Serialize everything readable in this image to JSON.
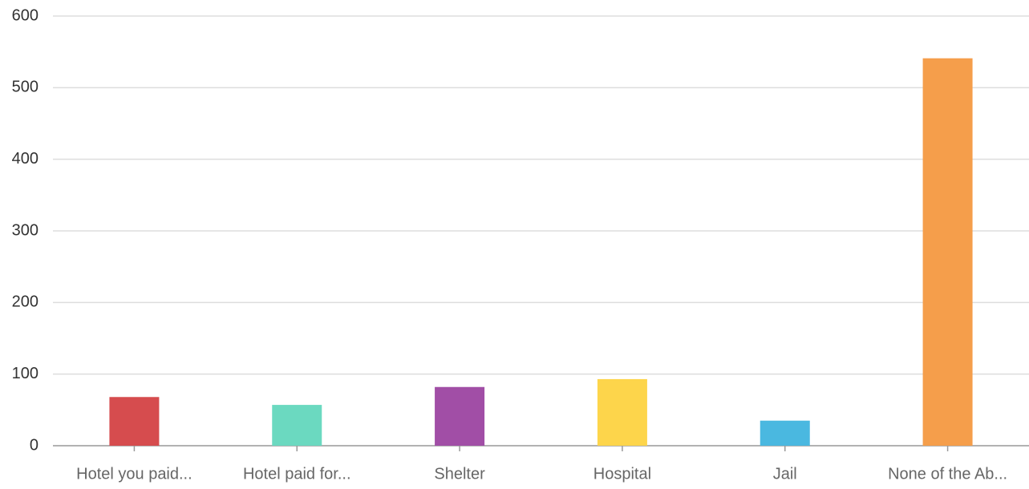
{
  "chart_data": {
    "type": "bar",
    "categories": [
      "Hotel you paid...",
      "Hotel paid for...",
      "Shelter",
      "Hospital",
      "Jail",
      "None of the Ab..."
    ],
    "values": [
      68,
      57,
      82,
      93,
      35,
      541
    ],
    "colors": [
      "#d64c4e",
      "#6bd9c0",
      "#a14ea6",
      "#fdd54b",
      "#4ab8e0",
      "#f59e4b"
    ],
    "ylim": [
      0,
      600
    ],
    "yticks": [
      0,
      100,
      200,
      300,
      400,
      500,
      600
    ],
    "grid": true
  }
}
